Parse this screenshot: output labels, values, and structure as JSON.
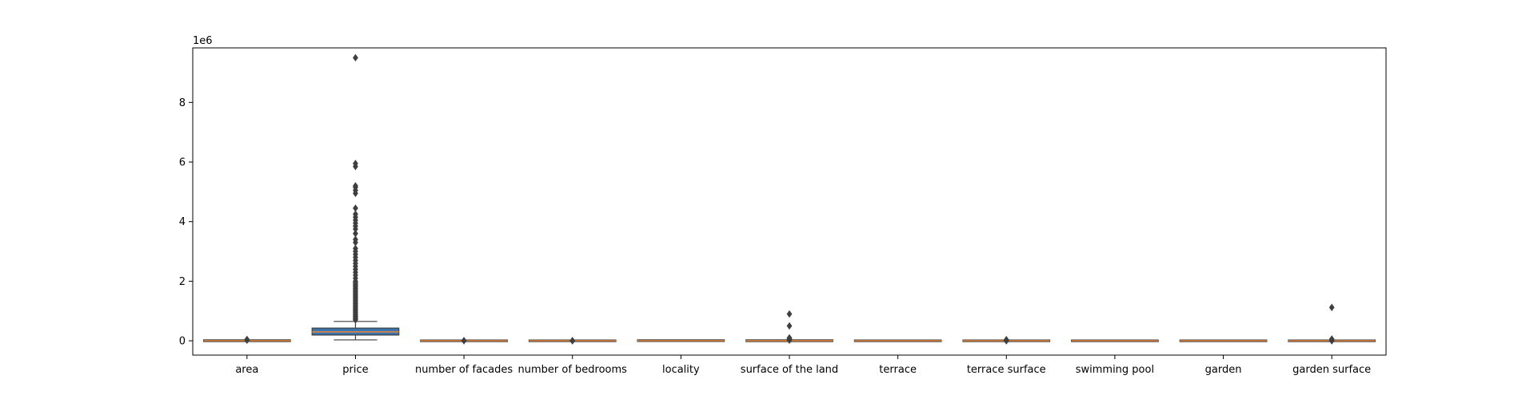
{
  "chart_data": {
    "type": "boxplot",
    "title": "",
    "xlabel": "",
    "ylabel": "",
    "y_offset_label": "1e6",
    "y_scale_factor": 1000000,
    "ylim": [
      -0.48,
      9.83
    ],
    "yticks": [
      0,
      2,
      4,
      6,
      8
    ],
    "ytick_labels": [
      "0",
      "2",
      "4",
      "6",
      "8"
    ],
    "categories": [
      "area",
      "price",
      "number of facades",
      "number of bedrooms",
      "locality",
      "surface of the land",
      "terrace",
      "terrace surface",
      "swimming pool",
      "garden",
      "garden surface"
    ],
    "series": [
      {
        "q1": 0.001,
        "median": 0.003,
        "q3": 0.006,
        "whislo": 0.0,
        "whishi": 0.01,
        "outliers": [
          0.02,
          0.035,
          0.045
        ]
      },
      {
        "q1": 0.22,
        "median": 0.3,
        "q3": 0.4,
        "whislo": 0.03,
        "whishi": 0.65,
        "outliers": [
          0.7,
          0.74,
          0.78,
          0.82,
          0.86,
          0.9,
          0.95,
          1.0,
          1.05,
          1.1,
          1.15,
          1.2,
          1.25,
          1.3,
          1.35,
          1.4,
          1.45,
          1.5,
          1.55,
          1.6,
          1.65,
          1.7,
          1.75,
          1.8,
          1.85,
          1.9,
          1.95,
          2.0,
          2.1,
          2.2,
          2.3,
          2.4,
          2.5,
          2.6,
          2.7,
          2.8,
          2.9,
          3.0,
          3.1,
          3.3,
          3.4,
          3.6,
          3.75,
          3.85,
          3.95,
          4.05,
          4.15,
          4.25,
          4.45,
          4.95,
          5.05,
          5.15,
          5.2,
          5.85,
          5.95,
          9.5
        ]
      },
      {
        "q1": 0.0,
        "median": 0.0,
        "q3": 0.0,
        "whislo": 0.0,
        "whishi": 0.0,
        "outliers": [
          0.004,
          0.006
        ]
      },
      {
        "q1": 0.0,
        "median": 0.0,
        "q3": 0.0,
        "whislo": 0.0,
        "whishi": 0.0,
        "outliers": [
          0.0,
          0.003,
          0.006
        ]
      },
      {
        "q1": 0.004,
        "median": 0.005,
        "q3": 0.006,
        "whislo": 0.003,
        "whishi": 0.007,
        "outliers": []
      },
      {
        "q1": 0.0,
        "median": 0.002,
        "q3": 0.006,
        "whislo": 0.0,
        "whishi": 0.01,
        "outliers": [
          0.02,
          0.04,
          0.06,
          0.08,
          0.1,
          0.5,
          0.9
        ]
      },
      {
        "q1": 0.0,
        "median": 0.0,
        "q3": 0.0,
        "whislo": 0.0,
        "whishi": 0.0,
        "outliers": []
      },
      {
        "q1": 0.0,
        "median": 0.0,
        "q3": 0.0,
        "whislo": 0.0,
        "whishi": 0.0,
        "outliers": [
          0.0,
          0.02,
          0.04
        ]
      },
      {
        "q1": 0.0,
        "median": 0.0,
        "q3": 0.0,
        "whislo": 0.0,
        "whishi": 0.0,
        "outliers": []
      },
      {
        "q1": 0.0,
        "median": 0.0,
        "q3": 0.0,
        "whislo": 0.0,
        "whishi": 0.0,
        "outliers": []
      },
      {
        "q1": 0.0,
        "median": 0.0,
        "q3": 0.0,
        "whislo": 0.0,
        "whishi": 0.0,
        "outliers": [
          0.0,
          0.03,
          0.06,
          1.12
        ]
      }
    ],
    "colors": {
      "box": "#3b75af",
      "median": "#ef8636",
      "line": "#3f3f3f",
      "outlier": "#3f3f3f",
      "axis": "#000000"
    },
    "grid": false,
    "legend": "none"
  }
}
